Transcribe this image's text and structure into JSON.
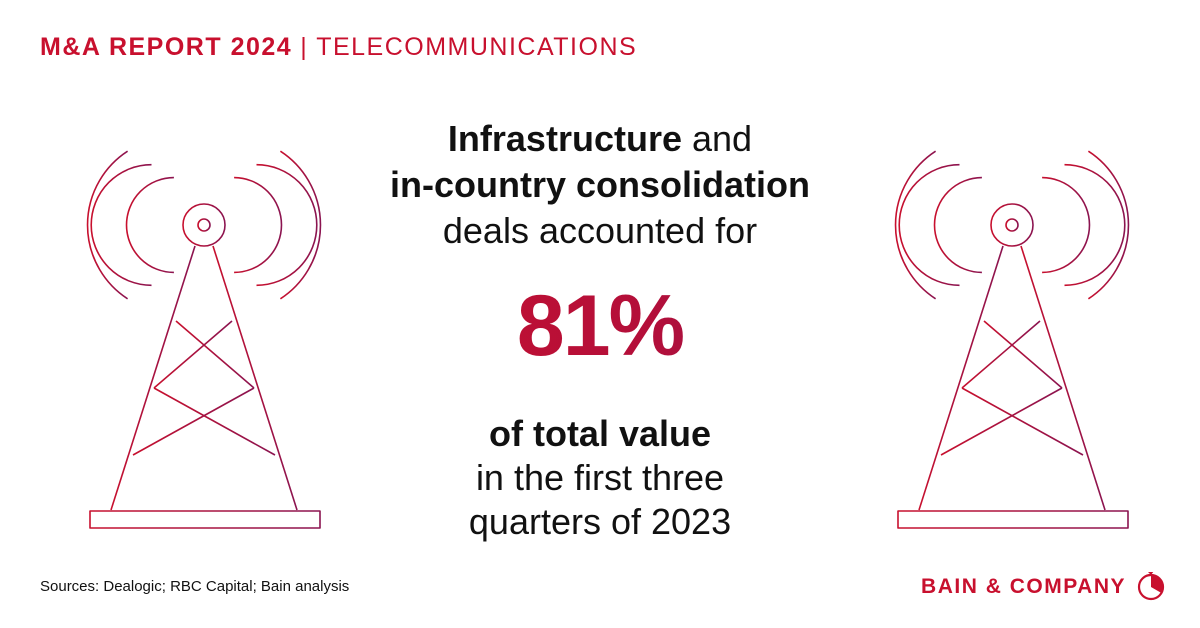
{
  "header": {
    "report": "M&A REPORT 2024",
    "separator": "|",
    "sector": "TELECOMMUNICATIONS"
  },
  "headline": {
    "line1_bold": "Infrastructure",
    "line1_rest": " and",
    "line2_bold": "in-country consolidation",
    "line3": "deals accounted for"
  },
  "stat": {
    "value": "81%"
  },
  "subline": {
    "line1_bold": "of total value",
    "line2": "in the first three",
    "line3": "quarters of 2023"
  },
  "footer": {
    "sources": "Sources: Dealogic; RBC Capital; Bain analysis",
    "logo": "BAIN & COMPANY"
  },
  "icons": {
    "tower_left": "radio-tower-icon",
    "tower_right": "radio-tower-icon",
    "logo_mark": "bain-logo-mark-icon"
  },
  "colors": {
    "brand_red": "#c8102e",
    "accent_purple": "#8b1450",
    "text": "#111111",
    "background": "#ffffff"
  }
}
